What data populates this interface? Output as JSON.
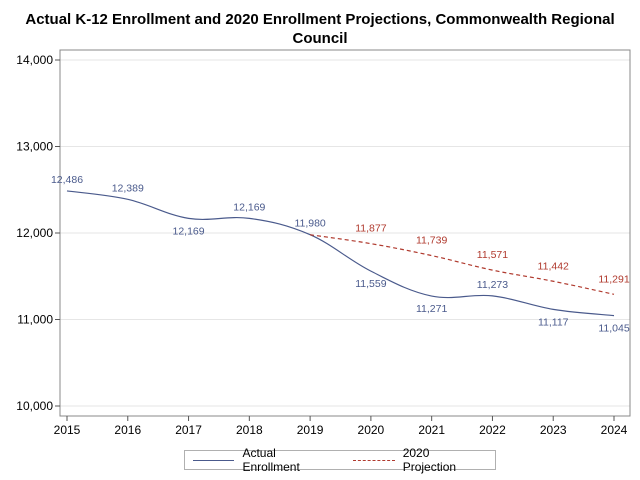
{
  "chart_data": {
    "type": "line",
    "title_line1": "Actual K-12 Enrollment and 2020 Enrollment Projections, Commonwealth Regional",
    "title_line2": "Council",
    "x": [
      2015,
      2016,
      2017,
      2018,
      2019,
      2020,
      2021,
      2022,
      2023,
      2024
    ],
    "xlim": [
      2015,
      2024
    ],
    "ylim": [
      10000,
      14000
    ],
    "yticks": [
      "10,000",
      "11,000",
      "12,000",
      "13,000",
      "14,000"
    ],
    "ytick_values": [
      10000,
      11000,
      12000,
      13000,
      14000
    ],
    "grid": "horizontal",
    "legend_position": "bottom",
    "series": [
      {
        "name": "Actual Enrollment",
        "color": "#4a5a8c",
        "style": "solid",
        "x": [
          2015,
          2016,
          2017,
          2018,
          2019,
          2020,
          2021,
          2022,
          2023,
          2024
        ],
        "values": [
          12486,
          12389,
          12169,
          12169,
          11980,
          11559,
          11271,
          11273,
          11117,
          11045
        ],
        "labels": [
          "12,486",
          "12,389",
          "12,169",
          "12,169",
          "11,980",
          "11,559",
          "11,271",
          "11,273",
          "11,117",
          "11,045"
        ]
      },
      {
        "name": "2020 Projection",
        "color": "#b03a2e",
        "style": "dashed",
        "x": [
          2019,
          2020,
          2021,
          2022,
          2023,
          2024
        ],
        "values": [
          11980,
          11877,
          11739,
          11571,
          11442,
          11291
        ],
        "labels": [
          "",
          "11,877",
          "11,739",
          "11,571",
          "11,442",
          "11,291"
        ]
      }
    ]
  }
}
